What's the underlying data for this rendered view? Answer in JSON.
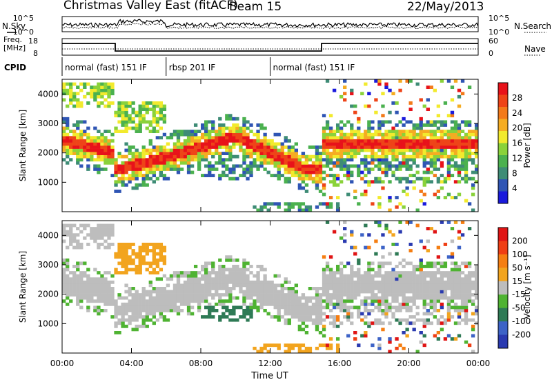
{
  "header": {
    "title": "Christmas Valley East (fitACF)",
    "beam": "Beam 15",
    "date": "22/May/2013"
  },
  "noise_panel": {
    "left_label": "N.Sky",
    "right_label": "N.Search",
    "left_ticks": [
      "10^5",
      "10^0"
    ],
    "right_ticks": [
      "10^5",
      "10^0"
    ]
  },
  "freq_panel": {
    "left_label_1": "Freq.",
    "left_label_2": "[MHz]",
    "right_label": "Nave",
    "left_ticks": [
      "18",
      "8"
    ],
    "right_ticks": [
      "60",
      "0"
    ]
  },
  "cpid": {
    "label": "CPID",
    "segments": [
      {
        "name": "normal (fast) 151 IF",
        "start_hour": 0,
        "end_hour": 6
      },
      {
        "name": "rbsp 201 IF",
        "start_hour": 6,
        "end_hour": 12
      },
      {
        "name": "normal (fast) 151 IF",
        "start_hour": 12,
        "end_hour": 24
      }
    ]
  },
  "chart_data": [
    {
      "type": "heatmap",
      "name": "power",
      "ylabel": "Slant Range [km]",
      "xlabel": "",
      "ylim": [
        0,
        4500
      ],
      "xlim": [
        0,
        24
      ],
      "y_ticks": [
        "1000",
        "2000",
        "3000",
        "4000"
      ],
      "colorbar_label": "Power [dB]",
      "colorbar_ticks": [
        "28",
        "24",
        "20",
        "16",
        "12",
        "8",
        "4"
      ],
      "colors": [
        "#1a1adc",
        "#2f55b4",
        "#3e8c76",
        "#4bb14f",
        "#8ad23a",
        "#f2ea2d",
        "#f5ac22",
        "#f37a1a",
        "#ee4418",
        "#e8121a"
      ]
    },
    {
      "type": "heatmap",
      "name": "velocity",
      "ylabel": "Slant Range [km]",
      "xlabel": "Time UT",
      "ylim": [
        0,
        4500
      ],
      "xlim": [
        0,
        24
      ],
      "y_ticks": [
        "1000",
        "2000",
        "3000",
        "4000"
      ],
      "x_ticks": [
        "00:00",
        "04:00",
        "08:00",
        "12:00",
        "16:00",
        "20:00",
        "00:00"
      ],
      "colorbar_label": "Velocity [m s⁻¹]",
      "colorbar_ticks": [
        "200",
        "100",
        "50",
        "15",
        "-15",
        "-50",
        "-100",
        "-200"
      ],
      "colors": [
        "#2a3ab0",
        "#3d63c7",
        "#2e7a55",
        "#4fb332",
        "#bdbdbd",
        "#f2a41e",
        "#f57e12",
        "#ef3e14",
        "#e01414"
      ]
    }
  ]
}
